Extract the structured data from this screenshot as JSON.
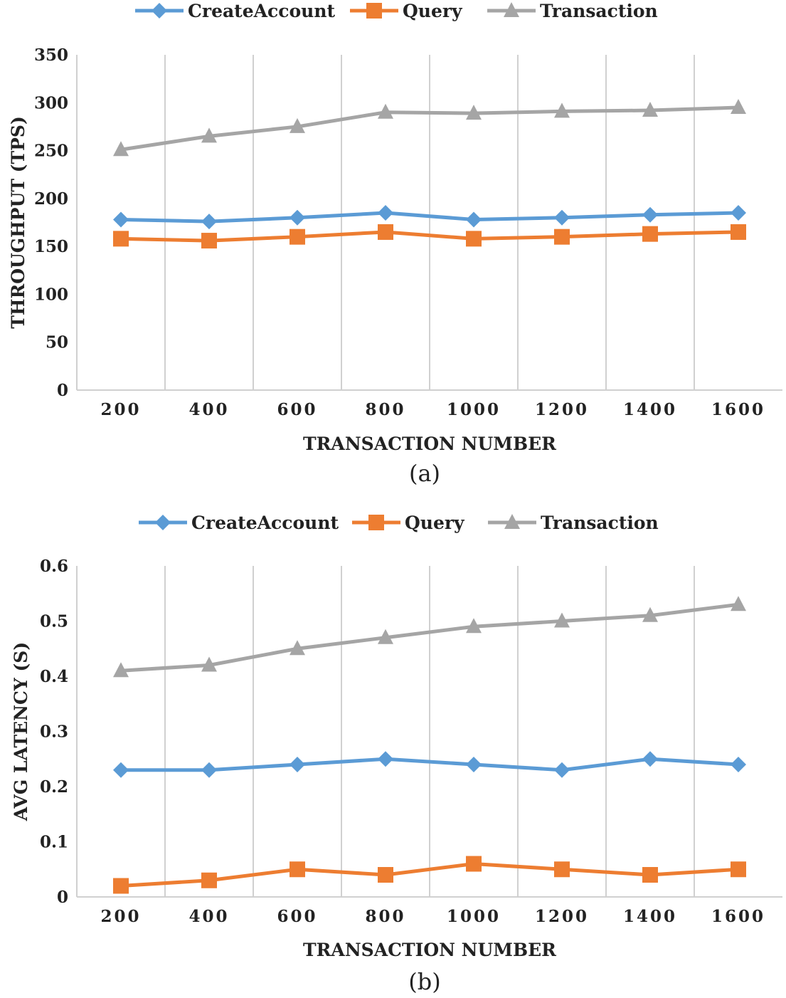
{
  "chart_data": [
    {
      "type": "line",
      "caption": "(a)",
      "xlabel": "TRANSACTION NUMBER",
      "ylabel": "THROUGHPUT (TPS)",
      "categories": [
        "200",
        "400",
        "600",
        "800",
        "1000",
        "1200",
        "1400",
        "1600"
      ],
      "ylim": [
        0,
        350
      ],
      "yticks": [
        "0",
        "50",
        "100",
        "150",
        "200",
        "250",
        "300",
        "350"
      ],
      "grid": "vertical",
      "legend": "top",
      "series": [
        {
          "name": "CreateAccount",
          "color": "#5b9bd5",
          "marker": "diamond",
          "values": [
            178,
            176,
            180,
            185,
            178,
            180,
            183,
            185
          ]
        },
        {
          "name": "Query",
          "color": "#ed7d31",
          "marker": "square",
          "values": [
            158,
            156,
            160,
            165,
            158,
            160,
            163,
            165
          ]
        },
        {
          "name": "Transaction",
          "color": "#a5a5a5",
          "marker": "triangle",
          "values": [
            251,
            265,
            275,
            290,
            289,
            291,
            292,
            295
          ]
        }
      ]
    },
    {
      "type": "line",
      "caption": "(b)",
      "xlabel": "TRANSACTION NUMBER",
      "ylabel": "AVG LATENCY (S)",
      "categories": [
        "200",
        "400",
        "600",
        "800",
        "1000",
        "1200",
        "1400",
        "1600"
      ],
      "ylim": [
        0,
        0.6
      ],
      "yticks": [
        "0",
        "0.1",
        "0.2",
        "0.3",
        "0.4",
        "0.5",
        "0.6"
      ],
      "grid": "vertical",
      "legend": "top",
      "series": [
        {
          "name": "CreateAccount",
          "color": "#5b9bd5",
          "marker": "diamond",
          "values": [
            0.23,
            0.23,
            0.24,
            0.25,
            0.24,
            0.23,
            0.25,
            0.24
          ]
        },
        {
          "name": "Query",
          "color": "#ed7d31",
          "marker": "square",
          "values": [
            0.02,
            0.03,
            0.05,
            0.04,
            0.06,
            0.05,
            0.04,
            0.05
          ]
        },
        {
          "name": "Transaction",
          "color": "#a5a5a5",
          "marker": "triangle",
          "values": [
            0.41,
            0.42,
            0.45,
            0.47,
            0.49,
            0.5,
            0.51,
            0.53
          ]
        }
      ]
    }
  ]
}
